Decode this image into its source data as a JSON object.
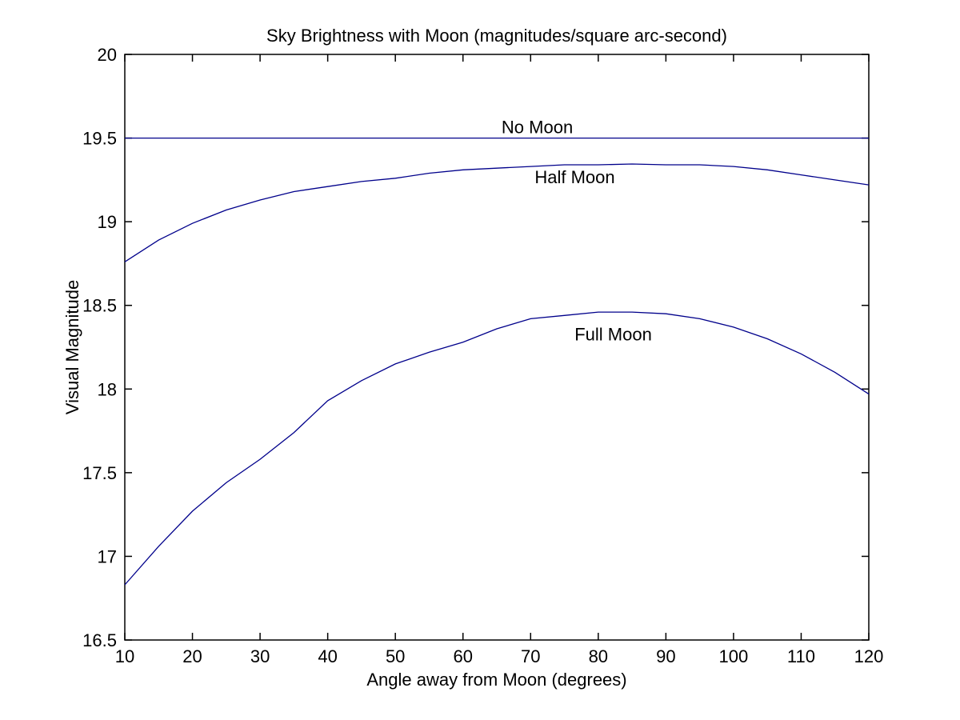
{
  "figure": {
    "title": "Sky Brightness with Moon (magnitudes/square arc-second)",
    "xlabel": "Angle away from Moon (degrees)",
    "ylabel": "Visual Magnitude"
  },
  "chart_data": {
    "type": "line",
    "title": "Sky Brightness with Moon (magnitudes/square arc-second)",
    "xlabel": "Angle away from Moon (degrees)",
    "ylabel": "Visual Magnitude",
    "xlim": [
      10,
      120
    ],
    "ylim": [
      16.5,
      20
    ],
    "xticks": [
      10,
      20,
      30,
      40,
      50,
      60,
      70,
      80,
      90,
      100,
      110,
      120
    ],
    "yticks": [
      16.5,
      17,
      17.5,
      18,
      18.5,
      19,
      19.5,
      20
    ],
    "grid": false,
    "legend": "none (inline text annotations)",
    "line_color": "#00008B",
    "axis_color": "#000000",
    "background_color": "#ffffff",
    "series": [
      {
        "name": "No Moon",
        "x": [
          10,
          120
        ],
        "y": [
          19.5,
          19.5
        ]
      },
      {
        "name": "Half Moon",
        "x": [
          10,
          15,
          20,
          25,
          30,
          35,
          40,
          45,
          50,
          55,
          60,
          65,
          70,
          75,
          80,
          85,
          90,
          95,
          100,
          105,
          110,
          115,
          120
        ],
        "y": [
          18.76,
          18.89,
          18.99,
          19.07,
          19.13,
          19.18,
          19.21,
          19.24,
          19.26,
          19.29,
          19.31,
          19.32,
          19.33,
          19.34,
          19.34,
          19.345,
          19.34,
          19.34,
          19.33,
          19.31,
          19.28,
          19.25,
          19.22
        ]
      },
      {
        "name": "Full Moon",
        "x": [
          10,
          15,
          20,
          25,
          30,
          35,
          40,
          45,
          50,
          55,
          60,
          65,
          70,
          75,
          80,
          85,
          90,
          95,
          100,
          105,
          110,
          115,
          120
        ],
        "y": [
          16.83,
          17.06,
          17.27,
          17.44,
          17.58,
          17.74,
          17.93,
          18.05,
          18.15,
          18.22,
          18.28,
          18.36,
          18.42,
          18.44,
          18.46,
          18.46,
          18.45,
          18.42,
          18.37,
          18.3,
          18.21,
          18.1,
          17.97
        ]
      }
    ],
    "annotations": [
      {
        "label": "No Moon",
        "x": 65.7,
        "y": 19.53
      },
      {
        "label": "Half Moon",
        "x": 70.6,
        "y": 19.23
      },
      {
        "label": "Full Moon",
        "x": 76.5,
        "y": 18.29
      }
    ]
  }
}
